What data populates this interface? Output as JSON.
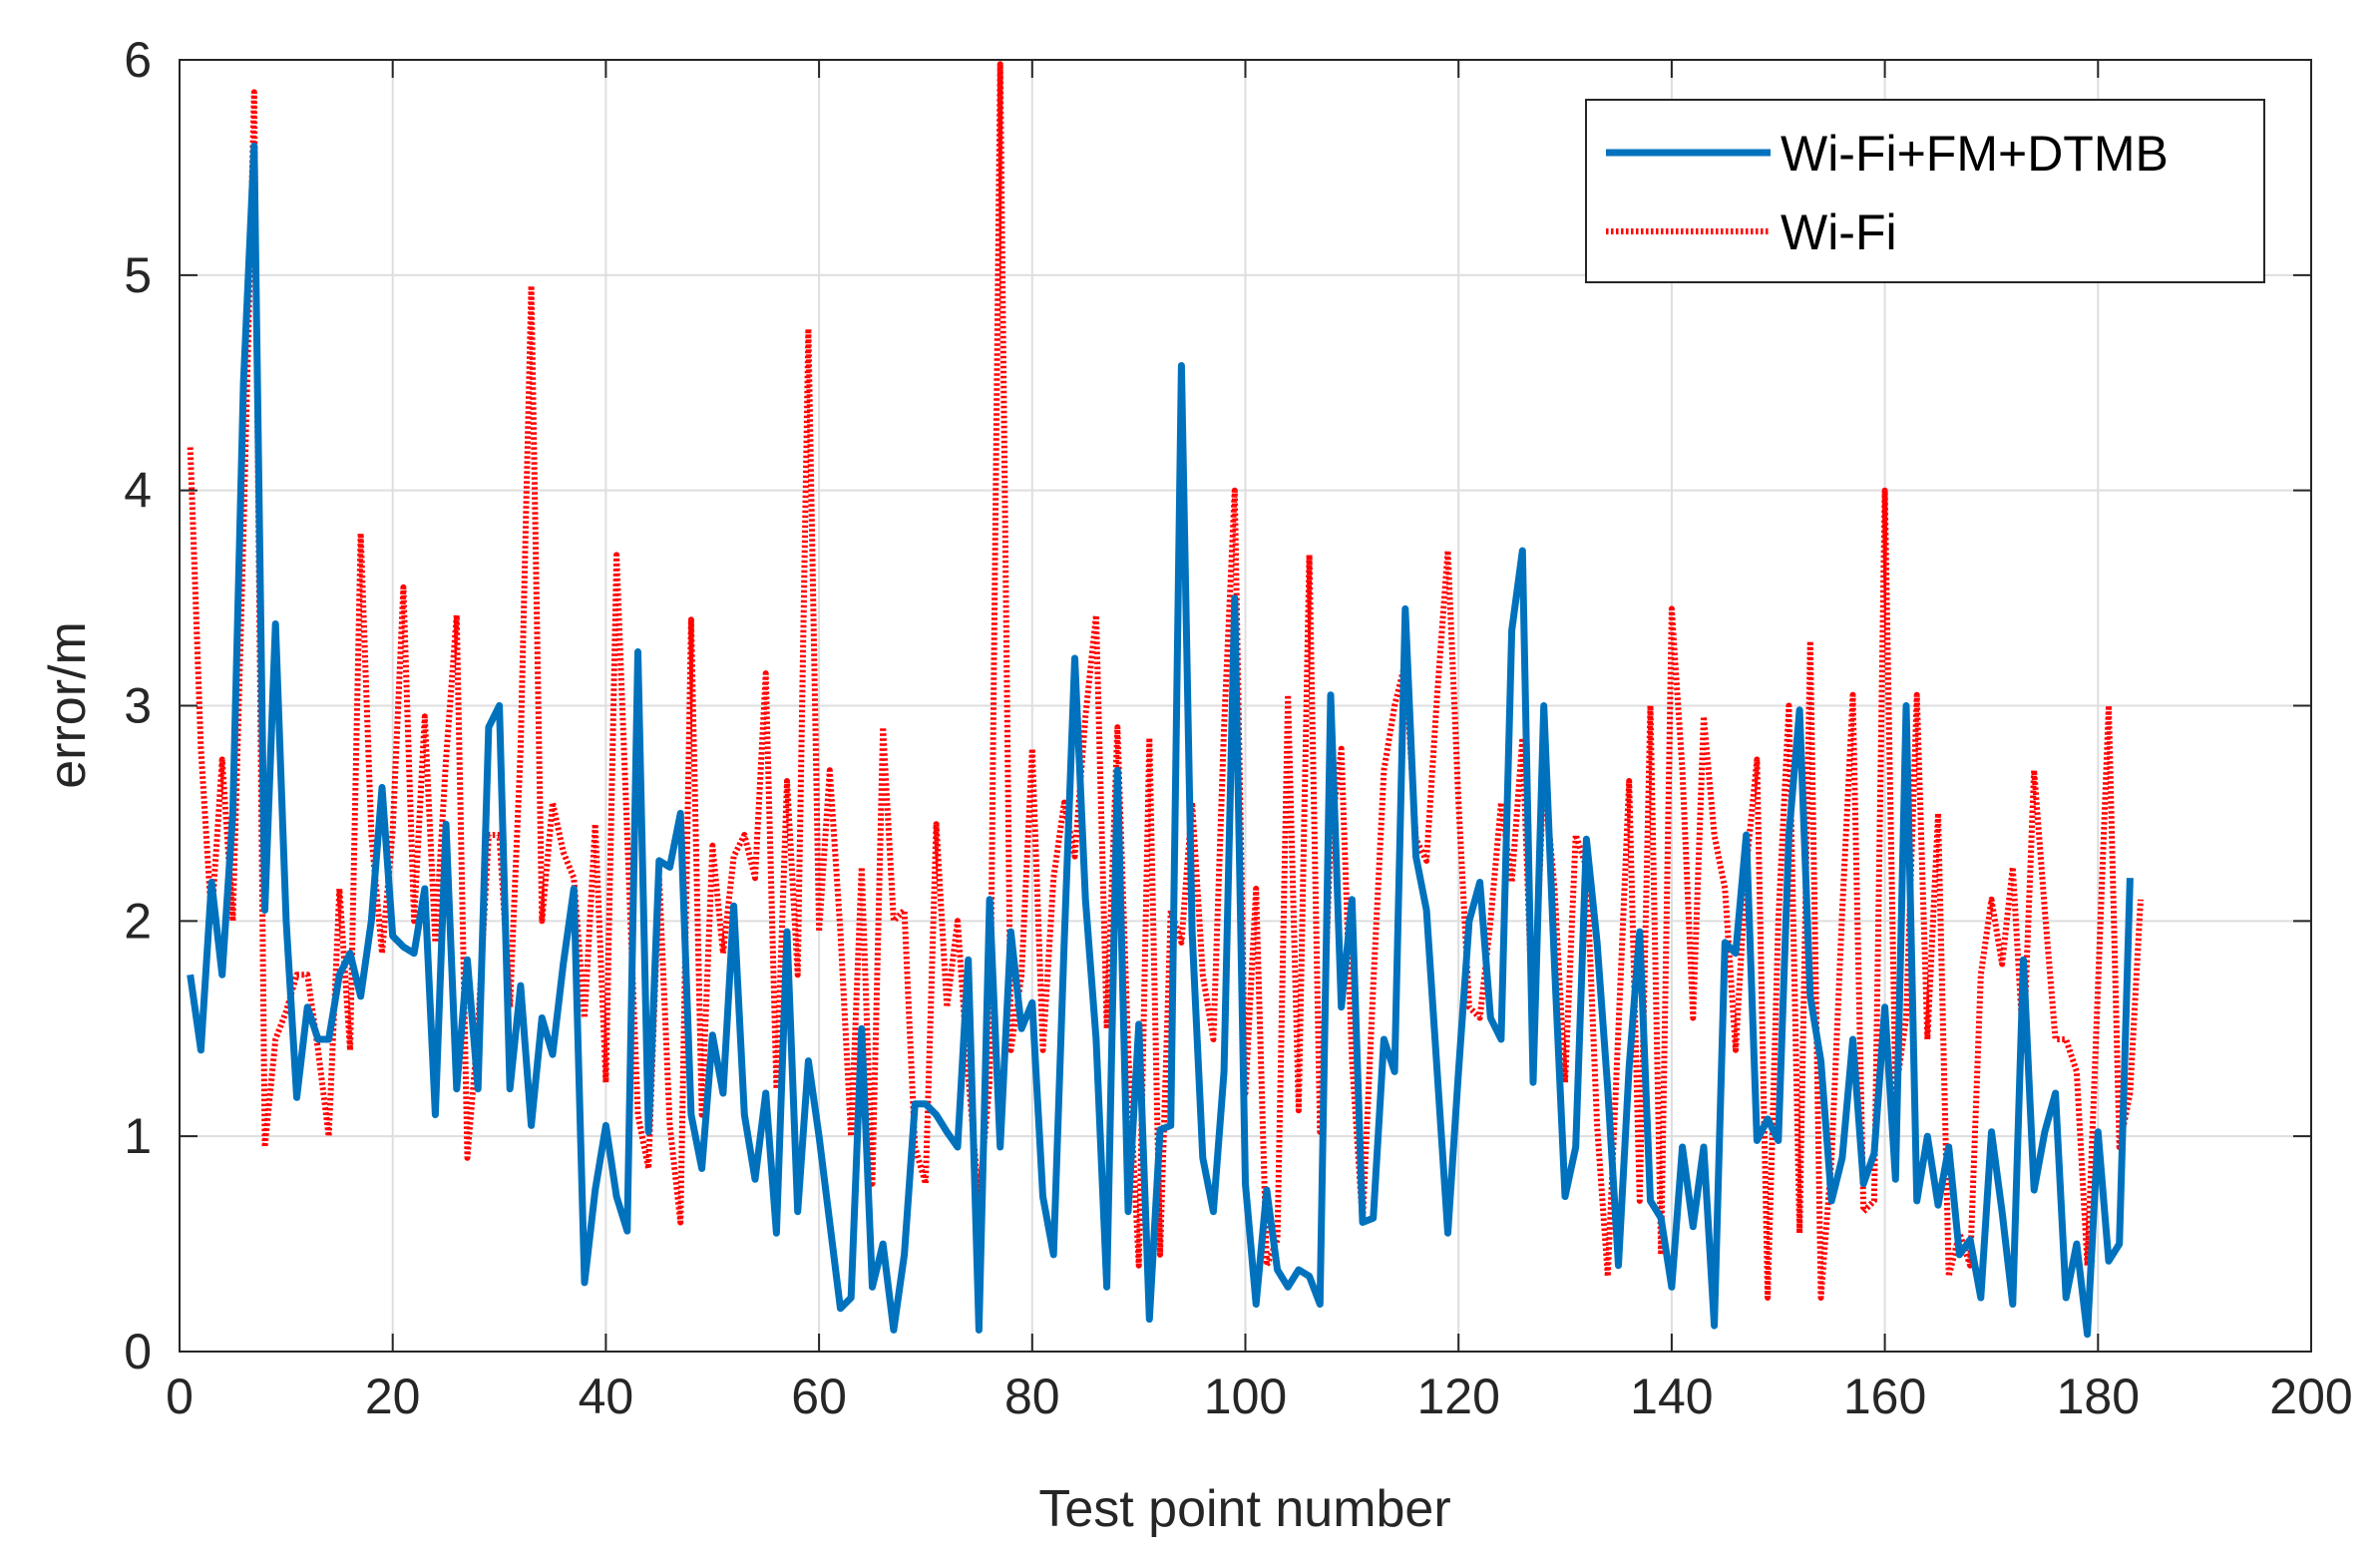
{
  "chart_data": {
    "type": "line",
    "title": "",
    "xlabel": "Test point number",
    "ylabel": "error/m",
    "xlim": [
      0,
      200
    ],
    "ylim": [
      0,
      6
    ],
    "xticks": [
      0,
      20,
      40,
      60,
      80,
      100,
      120,
      140,
      160,
      180,
      200
    ],
    "yticks": [
      0,
      1,
      2,
      3,
      4,
      5,
      6
    ],
    "grid": true,
    "legend_position": "top-right",
    "series": [
      {
        "name": "Wi-Fi+FM+DTMB",
        "color": "#0072BD",
        "style": "solid",
        "x_start": 1,
        "values": [
          1.75,
          1.4,
          2.18,
          1.75,
          2.5,
          4.5,
          5.6,
          2.05,
          3.38,
          2.0,
          1.18,
          1.6,
          1.45,
          1.45,
          1.75,
          1.85,
          1.65,
          2.0,
          2.62,
          1.93,
          1.88,
          1.85,
          2.15,
          1.1,
          2.45,
          1.22,
          1.82,
          1.22,
          2.9,
          3.0,
          1.22,
          1.7,
          1.05,
          1.55,
          1.38,
          1.8,
          2.15,
          0.32,
          0.75,
          1.05,
          0.72,
          0.56,
          3.25,
          1.02,
          2.28,
          2.25,
          2.5,
          1.1,
          0.85,
          1.47,
          1.2,
          2.07,
          1.1,
          0.8,
          1.2,
          0.55,
          1.95,
          0.65,
          1.35,
          1.0,
          0.6,
          0.2,
          0.25,
          1.5,
          0.3,
          0.5,
          0.1,
          0.45,
          1.15,
          1.15,
          1.1,
          1.02,
          0.95,
          1.82,
          0.1,
          2.1,
          0.95,
          1.95,
          1.5,
          1.62,
          0.72,
          0.45,
          1.9,
          3.22,
          2.1,
          1.45,
          0.3,
          2.7,
          0.65,
          1.52,
          0.15,
          1.03,
          1.05,
          4.58,
          1.95,
          0.9,
          0.65,
          1.3,
          3.5,
          0.78,
          0.22,
          0.75,
          0.38,
          0.3,
          0.38,
          0.35,
          0.22,
          3.05,
          1.6,
          2.1,
          0.6,
          0.62,
          1.45,
          1.3,
          3.45,
          2.3,
          2.05,
          1.3,
          0.55,
          1.3,
          2.0,
          2.18,
          1.55,
          1.45,
          3.35,
          3.72,
          1.25,
          3.0,
          1.8,
          0.72,
          0.95,
          2.38,
          1.9,
          1.22,
          0.4,
          1.32,
          1.95,
          0.7,
          0.62,
          0.3,
          0.95,
          0.58,
          0.95,
          0.12,
          1.9,
          1.85,
          2.4,
          0.98,
          1.08,
          0.98,
          2.4,
          2.98,
          1.65,
          1.35,
          0.7,
          0.9,
          1.45,
          0.78,
          0.92,
          1.6,
          0.8,
          3.0,
          0.7,
          1.0,
          0.68,
          0.95,
          0.45,
          0.52,
          0.25,
          1.02,
          0.65,
          0.22,
          1.82,
          0.75,
          1.02,
          1.2,
          0.25,
          0.5,
          0.08,
          1.02,
          0.42,
          0.5,
          2.2
        ]
      },
      {
        "name": "Wi-Fi",
        "color": "#FF0000",
        "style": "dotted",
        "x_start": 1,
        "values": [
          4.2,
          2.8,
          2.0,
          2.75,
          2.0,
          3.8,
          5.85,
          0.95,
          1.45,
          1.58,
          1.75,
          1.75,
          1.4,
          1.0,
          2.15,
          1.4,
          3.8,
          2.4,
          1.85,
          2.42,
          3.55,
          2.0,
          2.95,
          1.9,
          2.75,
          3.42,
          0.9,
          1.5,
          2.4,
          2.4,
          1.6,
          2.8,
          4.95,
          2.0,
          2.55,
          2.32,
          2.2,
          1.55,
          2.45,
          1.25,
          3.7,
          2.4,
          1.1,
          0.85,
          2.2,
          1.05,
          0.6,
          3.4,
          1.1,
          2.35,
          1.85,
          2.3,
          2.4,
          2.2,
          3.15,
          1.22,
          2.65,
          1.75,
          4.75,
          1.95,
          2.7,
          1.95,
          1.0,
          2.25,
          0.78,
          2.9,
          2.0,
          2.05,
          0.95,
          0.78,
          2.45,
          1.6,
          2.0,
          1.28,
          0.7,
          1.25,
          5.98,
          1.4,
          1.75,
          2.8,
          1.4,
          2.2,
          2.55,
          2.3,
          2.95,
          3.42,
          1.5,
          2.9,
          1.4,
          0.4,
          2.85,
          0.45,
          2.05,
          1.9,
          2.55,
          1.75,
          1.45,
          2.9,
          4.0,
          1.2,
          2.15,
          0.4,
          0.52,
          3.05,
          1.12,
          3.7,
          1.02,
          2.4,
          2.8,
          1.35,
          0.6,
          1.7,
          2.7,
          3.0,
          3.2,
          2.38,
          2.28,
          3.05,
          3.72,
          2.55,
          1.6,
          1.55,
          2.0,
          2.55,
          2.18,
          2.85,
          1.45,
          2.7,
          2.15,
          1.25,
          2.4,
          2.25,
          1.05,
          0.35,
          1.5,
          2.65,
          0.7,
          3.0,
          0.45,
          3.45,
          2.7,
          1.55,
          2.95,
          2.4,
          2.15,
          1.4,
          2.25,
          2.75,
          0.25,
          2.0,
          3.0,
          0.55,
          3.3,
          0.25,
          0.9,
          2.05,
          3.05,
          0.65,
          0.7,
          4.0,
          1.2,
          1.55,
          3.05,
          1.45,
          2.5,
          0.35,
          0.55,
          0.4,
          1.75,
          2.1,
          1.8,
          2.25,
          1.4,
          2.7,
          2.05,
          1.45,
          1.45,
          1.3,
          0.4,
          1.7,
          3.0,
          0.95,
          1.2,
          2.1
        ]
      }
    ]
  }
}
